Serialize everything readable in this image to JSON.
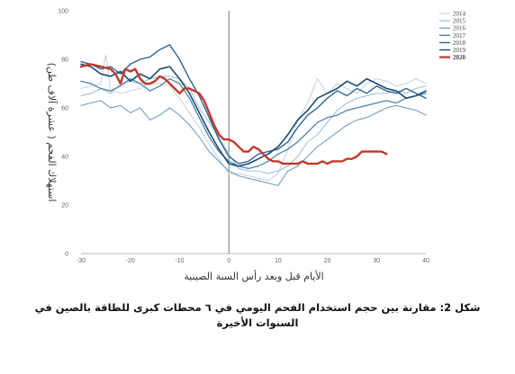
{
  "caption": "شكل 2: مقارنة بين حجم استخدام الفحم اليومي في ٦ محطات كبرى للطاقة بالصين في السنوات الأخيرة",
  "chart_data": {
    "type": "line",
    "xlabel": "الأيام قبل وبعد رأس السنة الصينية",
    "ylabel": "استهلاك الفحم ( عشرة آلاف طن)",
    "xlim": [
      -30,
      40
    ],
    "ylim": [
      0,
      100
    ],
    "x_ticks": [
      -30,
      -20,
      -10,
      0,
      10,
      20,
      30,
      40
    ],
    "y_ticks": [
      0,
      20,
      40,
      60,
      80,
      100
    ],
    "legend_position": "top-right",
    "grid": false,
    "reference_line_x": 0,
    "series": [
      {
        "name": "2014",
        "color": "#c9d8e6",
        "width": 1.2,
        "x": [
          -30,
          -28,
          -26,
          -25,
          -24,
          -22,
          -20,
          -18,
          -16,
          -14,
          -12,
          -10,
          -8,
          -6,
          -4,
          -2,
          0,
          2,
          4,
          6,
          8,
          10,
          12,
          14,
          16,
          18,
          20,
          22,
          24,
          26,
          28,
          30,
          32,
          34,
          36,
          38,
          40
        ],
        "y": [
          68,
          69,
          70,
          82,
          67,
          66,
          67,
          68,
          70,
          70,
          69,
          64,
          58,
          52,
          45,
          39,
          33,
          33,
          32,
          31,
          30,
          33,
          43,
          55,
          62,
          72,
          66,
          70,
          68,
          66,
          70,
          72,
          71,
          69,
          70,
          72,
          70
        ]
      },
      {
        "name": "2015",
        "color": "#a9c6dc",
        "width": 1.2,
        "x": [
          -30,
          -28,
          -26,
          -24,
          -22,
          -20,
          -18,
          -16,
          -14,
          -12,
          -10,
          -8,
          -6,
          -4,
          -2,
          0,
          2,
          4,
          6,
          8,
          10,
          12,
          14,
          16,
          18,
          20,
          22,
          24,
          26,
          28,
          30,
          32,
          34,
          36,
          38,
          40
        ],
        "y": [
          65,
          66,
          68,
          66,
          70,
          71,
          70,
          72,
          73,
          73,
          72,
          68,
          60,
          54,
          48,
          41,
          35,
          34,
          34,
          33,
          34,
          36,
          40,
          46,
          49,
          54,
          59,
          62,
          64,
          65,
          66,
          66,
          67,
          66,
          68,
          69
        ]
      },
      {
        "name": "2016",
        "color": "#7fa6c4",
        "width": 1.2,
        "x": [
          -30,
          -28,
          -26,
          -24,
          -22,
          -20,
          -18,
          -16,
          -14,
          -12,
          -10,
          -8,
          -6,
          -4,
          -2,
          0,
          2,
          4,
          6,
          8,
          10,
          12,
          14,
          16,
          18,
          20,
          22,
          24,
          26,
          28,
          30,
          32,
          34,
          36,
          38,
          40
        ],
        "y": [
          61,
          62,
          63,
          60,
          61,
          58,
          60,
          55,
          57,
          60,
          57,
          53,
          48,
          42,
          38,
          34,
          32,
          31,
          30,
          29,
          28,
          34,
          36,
          40,
          44,
          47,
          50,
          53,
          55,
          56,
          58,
          60,
          61,
          60,
          59,
          57
        ]
      },
      {
        "name": "2017",
        "color": "#4f82ad",
        "width": 1.3,
        "x": [
          -30,
          -28,
          -26,
          -24,
          -22,
          -20,
          -18,
          -16,
          -14,
          -12,
          -10,
          -8,
          -6,
          -4,
          -2,
          0,
          2,
          4,
          6,
          8,
          10,
          12,
          14,
          16,
          18,
          20,
          22,
          24,
          26,
          28,
          30,
          32,
          34,
          36,
          38,
          40
        ],
        "y": [
          71,
          70,
          68,
          67,
          69,
          72,
          70,
          67,
          69,
          72,
          70,
          64,
          56,
          48,
          42,
          38,
          36,
          35,
          36,
          38,
          41,
          43,
          46,
          50,
          54,
          56,
          57,
          59,
          60,
          61,
          62,
          63,
          62,
          64,
          65,
          66
        ]
      },
      {
        "name": "2018",
        "color": "#2f6693",
        "width": 1.4,
        "x": [
          -30,
          -28,
          -26,
          -24,
          -22,
          -20,
          -18,
          -16,
          -14,
          -12,
          -10,
          -8,
          -6,
          -4,
          -2,
          0,
          2,
          4,
          6,
          8,
          10,
          12,
          14,
          16,
          18,
          20,
          22,
          24,
          26,
          28,
          30,
          32,
          34,
          36,
          38,
          40
        ],
        "y": [
          79,
          78,
          76,
          77,
          74,
          78,
          80,
          81,
          84,
          86,
          80,
          72,
          65,
          56,
          47,
          40,
          37,
          38,
          41,
          42,
          43,
          46,
          52,
          57,
          60,
          64,
          67,
          65,
          68,
          66,
          69,
          67,
          66,
          68,
          66,
          64
        ]
      },
      {
        "name": "2019",
        "color": "#1b4a73",
        "width": 1.6,
        "x": [
          -30,
          -28,
          -26,
          -24,
          -22,
          -20,
          -18,
          -16,
          -14,
          -12,
          -10,
          -8,
          -6,
          -4,
          -2,
          0,
          2,
          4,
          6,
          8,
          10,
          12,
          14,
          16,
          18,
          20,
          22,
          24,
          26,
          28,
          30,
          32,
          34,
          36,
          38,
          40
        ],
        "y": [
          78,
          77,
          74,
          73,
          75,
          71,
          74,
          72,
          76,
          77,
          72,
          66,
          58,
          50,
          43,
          37,
          36,
          37,
          39,
          41,
          44,
          49,
          55,
          59,
          64,
          66,
          68,
          71,
          69,
          72,
          70,
          68,
          67,
          64,
          65,
          67
        ]
      },
      {
        "name": "2020",
        "color": "#c0392b",
        "width": 2.4,
        "x": [
          -30,
          -28,
          -26,
          -24,
          -23,
          -22,
          -21,
          -20,
          -19,
          -18,
          -17,
          -16,
          -15,
          -14,
          -13,
          -12,
          -11,
          -10,
          -9,
          -8,
          -7,
          -6,
          -5,
          -4,
          -3,
          -2,
          -1,
          0,
          1,
          2,
          3,
          4,
          5,
          6,
          7,
          8,
          9,
          10,
          11,
          12,
          13,
          14,
          15,
          16,
          17,
          18,
          19,
          20,
          21,
          22,
          23,
          24,
          25,
          26,
          27,
          28,
          29,
          30,
          31,
          32
        ],
        "y": [
          77,
          78,
          77,
          76,
          74,
          70,
          76,
          75,
          76,
          72,
          70,
          70,
          71,
          73,
          72,
          70,
          68,
          66,
          68,
          68,
          67,
          66,
          63,
          58,
          53,
          49,
          47,
          47,
          46,
          44,
          42,
          42,
          44,
          43,
          41,
          39,
          38,
          38,
          37,
          37,
          37,
          37,
          38,
          37,
          37,
          37,
          38,
          37,
          38,
          38,
          38,
          39,
          39,
          40,
          42,
          42,
          42,
          42,
          42,
          41
        ]
      }
    ]
  }
}
